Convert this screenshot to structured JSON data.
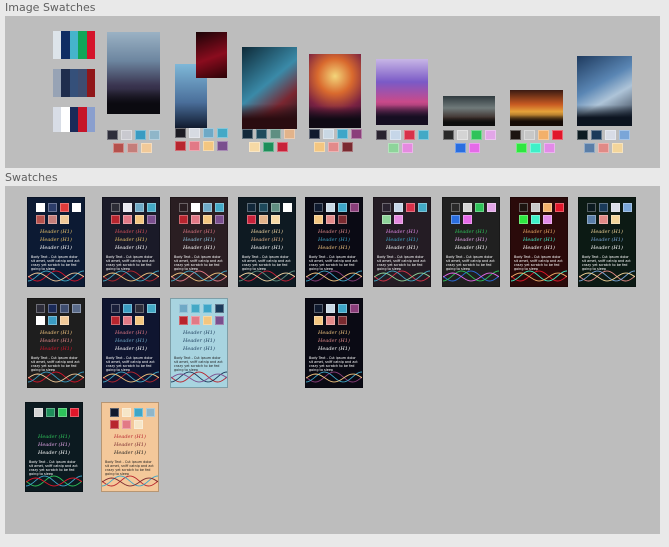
{
  "image_swatches_section": {
    "title": "Image Swatches",
    "images": [
      {
        "kind": "strips",
        "strips": [
          [
            "#dde4ea",
            "#0f2d63",
            "#46b4cc",
            "#12a659",
            "#d5142b"
          ],
          [
            "#97a3b5",
            "#1f2d4d",
            "#35507a",
            "#3e4d70",
            "#901619"
          ],
          [
            "#d8dde6",
            "#ffffff",
            "#1a2a58",
            "#c6152a",
            "#8a9fce"
          ]
        ]
      },
      {
        "kind": "photo",
        "bg": "linear-gradient(180deg,#9bb2c4 0%,#6d86a0 35%,#3a3550 65%,#120f16 100%)",
        "figure": "#0b0a10",
        "swatches": [
          "#2d2d3a",
          "#c9c9cf",
          "#3a9bc2",
          "#8fb6c9",
          "#b5514c",
          "#c47e7a",
          "#f1c998"
        ]
      },
      {
        "kind": "photo2",
        "bg": "linear-gradient(180deg,#7fb8d8 0%,#4a6e9a 60%,#101a2e 100%)",
        "inset": "linear-gradient(160deg,#1a0306 0%,#8a0c1e 55%,#2a0206 100%)",
        "swatches": [
          "#1c1b22",
          "#d7dbe2",
          "#6fa9c6",
          "#44a9c6",
          "#b8252e",
          "#e27986",
          "#f3c680",
          "#7a4f8e"
        ]
      },
      {
        "kind": "photo",
        "bg": "linear-gradient(140deg,#0e2a38 0%,#3a8aa8 45%,#7a2630 70%,#0c1a22 100%)",
        "figure": "#2a0c10",
        "swatches": [
          "#12283a",
          "#1e4a5c",
          "#5f8f82",
          "#e2b38a",
          "#f6d9a5",
          "#1e8e5a",
          "#c8223a"
        ]
      },
      {
        "kind": "photo",
        "bg": "radial-gradient(circle at 50% 30%,#f3d57a 0%,#d96a2e 30%,#7a2242 60%,#1a1030 100%)",
        "figure": "#100a14",
        "swatches": [
          "#101a2e",
          "#c9d8e4",
          "#3ea6c8",
          "#8a3e7a",
          "#f3c680",
          "#e28a8a",
          "#7a2a30"
        ]
      },
      {
        "kind": "photo",
        "bg": "linear-gradient(180deg,#c7b6e6 0%,#7a5ac6 35%,#c94a8a 65%,#1c1230 100%)",
        "figure": "#160e22",
        "swatches": [
          "#2a2330",
          "#c6d6e8",
          "#d8324a",
          "#42a9c6",
          "#8ed49a",
          "#e58ae0"
        ]
      },
      {
        "kind": "photo",
        "bg": "linear-gradient(180deg,#2f3a3e 0%,#707a7a 40%,#3c2e2a 75%,#141414 100%)",
        "figure": "#0e0e0e",
        "swatches": [
          "#2a2a2a",
          "#d4d4d4",
          "#2ec35a",
          "#e2a6e8",
          "#2a6ee0",
          "#e56ae8"
        ]
      },
      {
        "kind": "photo",
        "bg": "linear-gradient(180deg,#3a1a12 0%,#c85a22 40%,#e6a23a 60%,#1a0e0a 100%)",
        "figure": "#140a06",
        "swatches": [
          "#1c1410",
          "#c8c8c8",
          "#f2b06a",
          "#e1162a",
          "#2ee640",
          "#3ef0c8",
          "#e28ae8"
        ]
      },
      {
        "kind": "photo",
        "bg": "linear-gradient(150deg,#1e3a5e 0%,#5a86b4 40%,#aec4d8 60%,#1a2232 100%)",
        "figure": "#0c1420",
        "swatches": [
          "#0c1a20",
          "#1a3a5a",
          "#d8dce6",
          "#7aa6d8",
          "#5a7ea8",
          "#e08a86",
          "#f3d59a"
        ]
      }
    ]
  },
  "swatches_section": {
    "title": "Swatches",
    "header_text": "Header (H1)",
    "body_text": "Body Text - Cut ipsum dolor sit amet, sniff catnip and act crazy yet scratch to be fed going to sleep",
    "cards": [
      {
        "bg": "#0c1a33",
        "h": [
          "#e8c26a",
          "#e8c26a",
          "#ffffff"
        ],
        "body": "#ffffff",
        "top": [
          "#ffffff",
          "#2c3d6a",
          "#e23a3a",
          "#ffffff"
        ],
        "bottom": [
          "#b5514c",
          "#c47e7a",
          "#f1c998"
        ],
        "waves": [
          "#d5142b",
          "#3fa9c7",
          "#f1c998"
        ]
      },
      {
        "bg": "#1a1a28",
        "h": [
          "#d9525a",
          "#e8c26a",
          "#ffffff"
        ],
        "body": "#ffffff",
        "top": [
          "#2c2c36",
          "#e8e8f0",
          "#6fa9c6",
          "#44a9c6"
        ],
        "bottom": [
          "#b8252e",
          "#e27986",
          "#f3c680",
          "#7a4f8e"
        ],
        "waves": [
          "#b8252e",
          "#44a9c6",
          "#f3c680"
        ]
      },
      {
        "bg": "#2a1e22",
        "h": [
          "#e27986",
          "#8fc6e0",
          "#ffffff"
        ],
        "body": "#ffffff",
        "top": [
          "#2a1e22",
          "#ffffff",
          "#6fa9c6",
          "#44a9c6"
        ],
        "bottom": [
          "#b8252e",
          "#e27986",
          "#f3c680",
          "#7a4f8e"
        ],
        "waves": [
          "#e27986",
          "#44a9c6",
          "#f3c680"
        ]
      },
      {
        "bg": "#0e1a22",
        "h": [
          "#f6d9a5",
          "#e2b38a",
          "#ffffff"
        ],
        "body": "#ffffff",
        "top": [
          "#12283a",
          "#1e4a5c",
          "#5f8f82",
          "#ffffff"
        ],
        "bottom": [
          "#c8223a",
          "#e2b38a",
          "#f6d9a5"
        ],
        "waves": [
          "#c8223a",
          "#5f8f82",
          "#f6d9a5"
        ]
      },
      {
        "bg": "#0a0a14",
        "h": [
          "#e28a8a",
          "#3ea6c8",
          "#f3c680"
        ],
        "body": "#ffffff",
        "top": [
          "#101a2e",
          "#c9d8e4",
          "#3ea6c8",
          "#8a3e7a"
        ],
        "bottom": [
          "#f3c680",
          "#e28a8a",
          "#7a2a30"
        ],
        "waves": [
          "#8a3e7a",
          "#3ea6c8",
          "#f3c680"
        ]
      },
      {
        "bg": "#241c24",
        "h": [
          "#e28ae8",
          "#3ea6c8",
          "#ffffff"
        ],
        "body": "#ffffff",
        "top": [
          "#2a2330",
          "#c6d6e8",
          "#d8324a",
          "#42a9c6"
        ],
        "bottom": [
          "#8ed49a",
          "#e58ae0"
        ],
        "waves": [
          "#d8324a",
          "#42a9c6",
          "#8ed49a"
        ]
      },
      {
        "bg": "#202020",
        "h": [
          "#2ec35a",
          "#e2a6e8",
          "#ffffff"
        ],
        "body": "#ffffff",
        "top": [
          "#2a2a2a",
          "#d4d4d4",
          "#2ec35a",
          "#e2a6e8"
        ],
        "bottom": [
          "#2a6ee0",
          "#e56ae8"
        ],
        "waves": [
          "#2a6ee0",
          "#2ec35a",
          "#e56ae8"
        ]
      },
      {
        "bg": "#2a0a0a",
        "h": [
          "#f2b06a",
          "#3ef0c8",
          "#ffffff"
        ],
        "body": "#ffffff",
        "top": [
          "#1c1410",
          "#c8c8c8",
          "#f2b06a",
          "#e1162a"
        ],
        "bottom": [
          "#2ee640",
          "#3ef0c8",
          "#e28ae8"
        ],
        "waves": [
          "#e1162a",
          "#3ef0c8",
          "#f2b06a"
        ]
      },
      {
        "bg": "#0c1a14",
        "h": [
          "#f3d59a",
          "#7aa6d8",
          "#ffffff"
        ],
        "body": "#ffffff",
        "top": [
          "#0c1a20",
          "#1a3a5a",
          "#d8dce6",
          "#7aa6d8"
        ],
        "bottom": [
          "#5a7ea8",
          "#e08a86",
          "#f3d59a"
        ],
        "waves": [
          "#e08a86",
          "#7aa6d8",
          "#f3d59a"
        ]
      },
      {
        "bg": "#1e1e1e",
        "h": [
          "#f3c680",
          "#e28a8a",
          "#d5142b"
        ],
        "body": "#ffffff",
        "top": [
          "#2d2d3a",
          "#1a2a58",
          "#3e4d70",
          "#5a6b8a"
        ],
        "bottom": [
          "#ffffff",
          "#3a9bc2",
          "#f1c998"
        ],
        "waves": [
          "#d5142b",
          "#3a9bc2",
          "#f1c998"
        ]
      },
      {
        "bg": "#0f1530",
        "h": [
          "#e27986",
          "#6fa9c6",
          "#ffffff"
        ],
        "body": "#ffffff",
        "top": [
          "#1a1f3a",
          "#3a9bc2",
          "#2d2d3a",
          "#44a9c6"
        ],
        "bottom": [
          "#b8252e",
          "#e27986",
          "#f3c680"
        ],
        "waves": [
          "#b8252e",
          "#44a9c6",
          "#f3c680"
        ]
      },
      {
        "bg": "#a8d4e0",
        "h": [
          "#1a3a5a",
          "#1a3a5a",
          "#1a3a5a"
        ],
        "body": "#1a1a1a",
        "top": [
          "#6fa9c6",
          "#44a9c6",
          "#3ea6c8",
          "#1a3a5a"
        ],
        "bottom": [
          "#b8252e",
          "#e27986",
          "#f3c680",
          "#7a4f8e"
        ],
        "waves": [
          "#b8252e",
          "#1a3a5a",
          "#7a4f8e"
        ]
      },
      {
        "bg": "#0a0a14",
        "h": [
          "#f3c680",
          "#e28a8a",
          "#ffffff"
        ],
        "body": "#ffffff",
        "top": [
          "#101a2e",
          "#c9d8e4",
          "#3ea6c8",
          "#8a3e7a"
        ],
        "bottom": [
          "#f3c680",
          "#e28a8a",
          "#7a2a30"
        ],
        "waves": [
          "#8a3e7a",
          "#3ea6c8",
          "#f3c680"
        ]
      },
      {
        "bg": "#0c1a20",
        "h": [
          "#2ec35a",
          "#e2a6e8",
          "#ffffff"
        ],
        "body": "#ffffff",
        "top": [
          "#d4d4d4",
          "#1e8e5a",
          "#2ec35a",
          "#e1162a"
        ],
        "bottom": [],
        "waves": [
          "#2ec35a",
          "#3ea6c8",
          "#e1162a"
        ]
      },
      {
        "bg": "#f4c89a",
        "h": [
          "#b8252e",
          "#7a2a30",
          "#1a1a1a"
        ],
        "body": "#1a1a1a",
        "top": [
          "#101a2e",
          "#f6e6c8",
          "#3ea6c8",
          "#8fb6c9"
        ],
        "bottom": [
          "#b8252e",
          "#e27986",
          "#f6e6c8"
        ],
        "waves": [
          "#b8252e",
          "#3ea6c8",
          "#7a2a30"
        ]
      }
    ]
  }
}
